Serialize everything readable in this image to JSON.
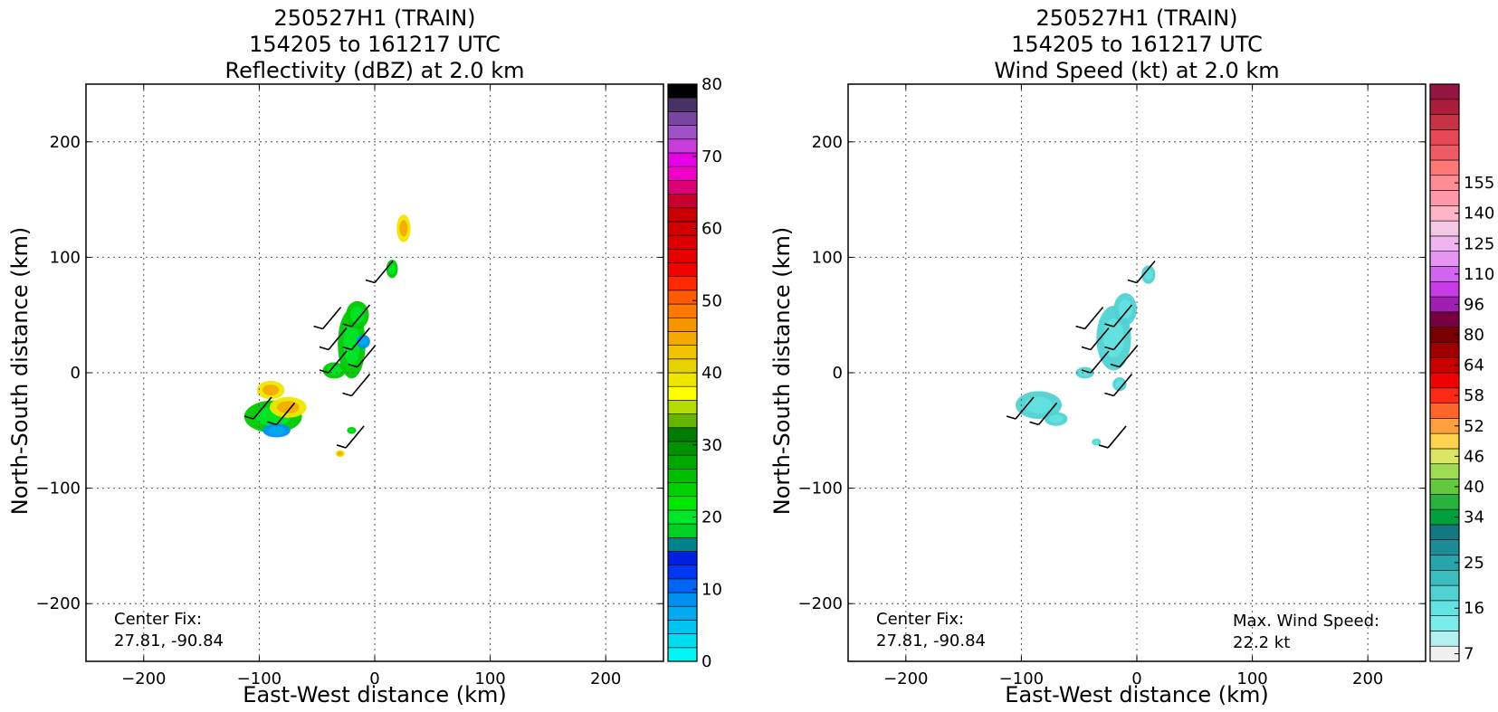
{
  "chart_data": [
    {
      "type": "heatmap",
      "title_lines": [
        "250527H1 (TRAIN)",
        "154205 to 161217 UTC",
        "Reflectivity (dBZ) at 2.0 km"
      ],
      "xlabel": "East-West distance (km)",
      "ylabel": "North-South distance (km)",
      "xlim": [
        -250,
        250
      ],
      "ylim": [
        -250,
        250
      ],
      "xticks": [
        -200,
        -100,
        0,
        100,
        200
      ],
      "yticks": [
        -200,
        -100,
        0,
        100,
        200
      ],
      "grid": true,
      "annotations": {
        "center_fix_label": "Center Fix:",
        "center_fix_value": "27.81, -90.84"
      },
      "colorbar": {
        "min": 0,
        "max": 80,
        "tick_labels": [
          "0",
          "10",
          "20",
          "30",
          "40",
          "50",
          "60",
          "70",
          "80"
        ],
        "tick_values": [
          0,
          10,
          20,
          30,
          40,
          50,
          60,
          70,
          80
        ],
        "colors": [
          "#00f5f5",
          "#00dcf0",
          "#00c3f0",
          "#00aaf0",
          "#0091f0",
          "#0064f5",
          "#0037f5",
          "#0020e0",
          "#00828c",
          "#00d023",
          "#00e628",
          "#00e800",
          "#00d000",
          "#00be00",
          "#00a800",
          "#009200",
          "#007d00",
          "#64b400",
          "#b4dc00",
          "#ffff00",
          "#f0e600",
          "#e8d200",
          "#f0c200",
          "#f5a800",
          "#f59600",
          "#ff7800",
          "#ff5a00",
          "#ff2800",
          "#f50000",
          "#e60000",
          "#dc0000",
          "#d20000",
          "#c80000",
          "#c80030",
          "#dc0078",
          "#f000c8",
          "#e600e6",
          "#c83cdc",
          "#a050c8",
          "#7846a0",
          "#463264",
          "#000000"
        ]
      },
      "echo_regions": [
        {
          "x": -88,
          "y": -38,
          "rx": 25,
          "ry": 14,
          "level": "green"
        },
        {
          "x": -75,
          "y": -30,
          "rx": 16,
          "ry": 9,
          "level": "yellow"
        },
        {
          "x": -90,
          "y": -15,
          "rx": 12,
          "ry": 8,
          "level": "yellow"
        },
        {
          "x": -35,
          "y": 2,
          "rx": 10,
          "ry": 7,
          "level": "green"
        },
        {
          "x": -20,
          "y": 25,
          "rx": 12,
          "ry": 30,
          "level": "green"
        },
        {
          "x": -15,
          "y": 50,
          "rx": 10,
          "ry": 12,
          "level": "green"
        },
        {
          "x": 15,
          "y": 90,
          "rx": 5,
          "ry": 8,
          "level": "green"
        },
        {
          "x": 25,
          "y": 125,
          "rx": 6,
          "ry": 12,
          "level": "yellow"
        },
        {
          "x": -10,
          "y": 27,
          "rx": 6,
          "ry": 6,
          "level": "blue"
        },
        {
          "x": -85,
          "y": -50,
          "rx": 12,
          "ry": 6,
          "level": "blue"
        },
        {
          "x": -30,
          "y": -70,
          "rx": 4,
          "ry": 3,
          "level": "yellow"
        },
        {
          "x": -20,
          "y": -50,
          "rx": 4,
          "ry": 3,
          "level": "green"
        }
      ],
      "wind_barbs": [
        {
          "x": 0,
          "y": 78
        },
        {
          "x": -45,
          "y": 38
        },
        {
          "x": -20,
          "y": 40
        },
        {
          "x": -40,
          "y": 20
        },
        {
          "x": -20,
          "y": 20
        },
        {
          "x": -40,
          "y": 0
        },
        {
          "x": -15,
          "y": 5
        },
        {
          "x": -20,
          "y": -20
        },
        {
          "x": -105,
          "y": -40
        },
        {
          "x": -85,
          "y": -45
        },
        {
          "x": -25,
          "y": -65
        }
      ]
    },
    {
      "type": "heatmap",
      "title_lines": [
        "250527H1 (TRAIN)",
        "154205 to 161217 UTC",
        "Wind Speed (kt) at 2.0 km"
      ],
      "xlabel": "East-West distance (km)",
      "ylabel": "North-South distance (km)",
      "xlim": [
        -250,
        250
      ],
      "ylim": [
        -250,
        250
      ],
      "xticks": [
        -200,
        -100,
        0,
        100,
        200
      ],
      "yticks": [
        -200,
        -100,
        0,
        100,
        200
      ],
      "grid": true,
      "annotations": {
        "center_fix_label": "Center Fix:",
        "center_fix_value": "27.81, -90.84",
        "max_wind_label": "Max. Wind Speed:",
        "max_wind_value": "22.2 kt"
      },
      "colorbar": {
        "tick_labels": [
          "7",
          "16",
          "25",
          "34",
          "40",
          "46",
          "52",
          "58",
          "64",
          "80",
          "96",
          "110",
          "125",
          "140",
          "155"
        ],
        "tick_values": [
          7,
          16,
          25,
          34,
          40,
          46,
          52,
          58,
          64,
          80,
          96,
          110,
          125,
          140,
          155
        ],
        "tick_indices": [
          0,
          3,
          6,
          9,
          11,
          13,
          15,
          17,
          19,
          21,
          23,
          25,
          27,
          29,
          31
        ],
        "colors": [
          "#f0f0f0",
          "#b4f0f0",
          "#78ebeb",
          "#64e1e1",
          "#50d2d2",
          "#3cbebe",
          "#28a5aa",
          "#1e8c96",
          "#147882",
          "#00a03c",
          "#28b43c",
          "#64c83c",
          "#a0dc50",
          "#dce664",
          "#ffd250",
          "#ffa03c",
          "#ff6428",
          "#ff2814",
          "#f00000",
          "#c80000",
          "#a00000",
          "#780000",
          "#780040",
          "#a01eb4",
          "#c83ce6",
          "#d264f0",
          "#e696f0",
          "#f0b4f0",
          "#f5c8e6",
          "#ffb4c8",
          "#ff96aa",
          "#ff8c96",
          "#ff7878",
          "#f05a64",
          "#e64655",
          "#c83246",
          "#aa1e3c",
          "#961440"
        ]
      },
      "echo_regions": [
        {
          "x": -85,
          "y": -28,
          "rx": 20,
          "ry": 12,
          "level": "cyan"
        },
        {
          "x": -70,
          "y": -40,
          "rx": 10,
          "ry": 6,
          "level": "cyan"
        },
        {
          "x": -20,
          "y": 30,
          "rx": 15,
          "ry": 28,
          "level": "cyan"
        },
        {
          "x": -10,
          "y": 55,
          "rx": 10,
          "ry": 14,
          "level": "cyan"
        },
        {
          "x": 10,
          "y": 85,
          "rx": 6,
          "ry": 8,
          "level": "cyan"
        },
        {
          "x": -45,
          "y": 0,
          "rx": 8,
          "ry": 5,
          "level": "cyan"
        },
        {
          "x": -15,
          "y": -10,
          "rx": 6,
          "ry": 6,
          "level": "cyan"
        },
        {
          "x": -35,
          "y": -60,
          "rx": 4,
          "ry": 3,
          "level": "cyan"
        }
      ],
      "wind_barbs": [
        {
          "x": 0,
          "y": 78
        },
        {
          "x": -45,
          "y": 38
        },
        {
          "x": -20,
          "y": 40
        },
        {
          "x": -40,
          "y": 20
        },
        {
          "x": -20,
          "y": 20
        },
        {
          "x": -40,
          "y": 0
        },
        {
          "x": -15,
          "y": 5
        },
        {
          "x": -20,
          "y": -20
        },
        {
          "x": -105,
          "y": -40
        },
        {
          "x": -85,
          "y": -45
        },
        {
          "x": -25,
          "y": -65
        }
      ]
    }
  ]
}
